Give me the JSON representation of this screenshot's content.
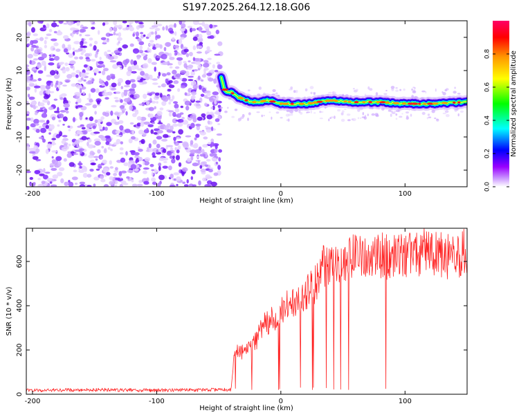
{
  "figure_title": "S197.2025.264.12.18.G06",
  "chart_data": [
    {
      "type": "heatmap",
      "name": "spectrogram",
      "xlabel": "Height of straight line (km)",
      "ylabel": "Frequency (Hz)",
      "xlim": [
        -205,
        150
      ],
      "ylim": [
        -25,
        25
      ],
      "xticks": [
        -200,
        -100,
        0,
        100
      ],
      "yticks": [
        -20,
        -10,
        0,
        10,
        20
      ],
      "colorbar": {
        "label": "Normalized spectral amplitude",
        "range": [
          0.0,
          1.0
        ],
        "ticks": [
          "0.0",
          "0.2",
          "0.4",
          "0.6",
          "0.8"
        ],
        "colors": [
          "#ffffff",
          "#cc99ff",
          "#9900ff",
          "#0000ff",
          "#00ffff",
          "#00ff00",
          "#ffff00",
          "#ff9900",
          "#ff0000",
          "#ff0066"
        ]
      },
      "noise_region": {
        "x": [
          -205,
          -48
        ],
        "freq": [
          -25,
          25
        ],
        "amplitude": "0.05-0.3"
      },
      "signal_track": [
        {
          "x": -48,
          "freq": 8
        },
        {
          "x": -46,
          "freq": 5
        },
        {
          "x": -44,
          "freq": 3.5
        },
        {
          "x": -40,
          "freq": 3.5
        },
        {
          "x": -35,
          "freq": 2
        },
        {
          "x": -30,
          "freq": 1.5
        },
        {
          "x": -25,
          "freq": 0.5
        },
        {
          "x": -20,
          "freq": 0.5
        },
        {
          "x": -10,
          "freq": 1
        },
        {
          "x": 0,
          "freq": 0
        },
        {
          "x": 20,
          "freq": 0
        },
        {
          "x": 40,
          "freq": 1
        },
        {
          "x": 60,
          "freq": 0.5
        },
        {
          "x": 80,
          "freq": 0.5
        },
        {
          "x": 100,
          "freq": 0
        },
        {
          "x": 120,
          "freq": 0
        },
        {
          "x": 150,
          "freq": 0.5
        }
      ]
    },
    {
      "type": "line",
      "name": "snr",
      "xlabel": "Height of straight line (km)",
      "ylabel": "SNR (10 * v/v)",
      "xlim": [
        -205,
        150
      ],
      "ylim": [
        0,
        750
      ],
      "xticks": [
        -200,
        -100,
        0,
        100
      ],
      "yticks": [
        0,
        200,
        400,
        600
      ],
      "color": "#ff0000",
      "series": [
        {
          "name": "SNR",
          "x": [
            -205,
            -150,
            -100,
            -60,
            -40,
            -37,
            -35,
            -30,
            -25,
            -20,
            -15,
            -10,
            -5,
            0,
            5,
            10,
            15,
            20,
            25,
            30,
            35,
            40,
            50,
            60,
            70,
            80,
            90,
            100,
            110,
            120,
            130,
            140,
            150
          ],
          "values": [
            18,
            20,
            18,
            20,
            20,
            210,
            200,
            190,
            220,
            240,
            300,
            330,
            350,
            370,
            400,
            420,
            430,
            450,
            480,
            520,
            580,
            600,
            610,
            620,
            610,
            630,
            620,
            620,
            640,
            640,
            630,
            630,
            640
          ]
        }
      ]
    }
  ]
}
